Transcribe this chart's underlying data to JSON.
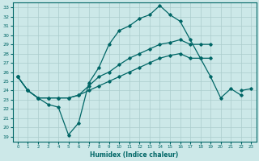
{
  "title": "",
  "xlabel": "Humidex (Indice chaleur)",
  "bg_color": "#cce8e8",
  "grid_color": "#aacccc",
  "line_color": "#006666",
  "xlim": [
    -0.5,
    23.5
  ],
  "ylim": [
    18.5,
    33.5
  ],
  "xticks": [
    0,
    1,
    2,
    3,
    4,
    5,
    6,
    7,
    8,
    9,
    10,
    11,
    12,
    13,
    14,
    15,
    16,
    17,
    18,
    19,
    20,
    21,
    22,
    23
  ],
  "yticks": [
    19,
    20,
    21,
    22,
    23,
    24,
    25,
    26,
    27,
    28,
    29,
    30,
    31,
    32,
    33
  ],
  "line1_x": [
    0,
    1,
    2,
    3,
    4,
    5,
    6,
    7,
    8,
    9,
    10,
    11,
    12,
    13,
    14,
    15,
    16,
    17,
    18,
    19,
    20,
    21,
    22
  ],
  "line1_y": [
    25.5,
    24.0,
    23.2,
    22.5,
    22.2,
    19.2,
    20.5,
    24.8,
    26.5,
    29.0,
    30.5,
    31.0,
    31.8,
    32.2,
    33.2,
    32.2,
    31.5,
    29.5,
    27.5,
    25.5,
    23.2,
    24.2,
    23.5
  ],
  "line2_x": [
    0,
    1,
    2,
    3,
    4,
    5,
    6,
    7,
    8,
    9,
    10,
    11,
    12,
    13,
    14,
    15,
    16,
    17,
    18,
    19,
    22,
    23
  ],
  "line2_y": [
    25.5,
    24.0,
    23.2,
    23.2,
    23.2,
    23.2,
    23.5,
    24.0,
    24.5,
    25.0,
    25.5,
    26.0,
    26.5,
    27.0,
    27.5,
    27.8,
    28.0,
    27.5,
    27.5,
    27.5,
    24.0,
    24.2
  ],
  "line3_x": [
    0,
    1,
    2,
    3,
    4,
    5,
    6,
    7,
    8,
    9,
    10,
    11,
    12,
    13,
    14,
    15,
    16,
    17,
    18,
    19
  ],
  "line3_y": [
    25.5,
    24.0,
    23.2,
    23.2,
    23.2,
    23.2,
    23.5,
    24.5,
    25.5,
    26.0,
    26.8,
    27.5,
    28.0,
    28.5,
    29.0,
    29.2,
    29.5,
    29.0,
    29.0,
    29.0
  ]
}
